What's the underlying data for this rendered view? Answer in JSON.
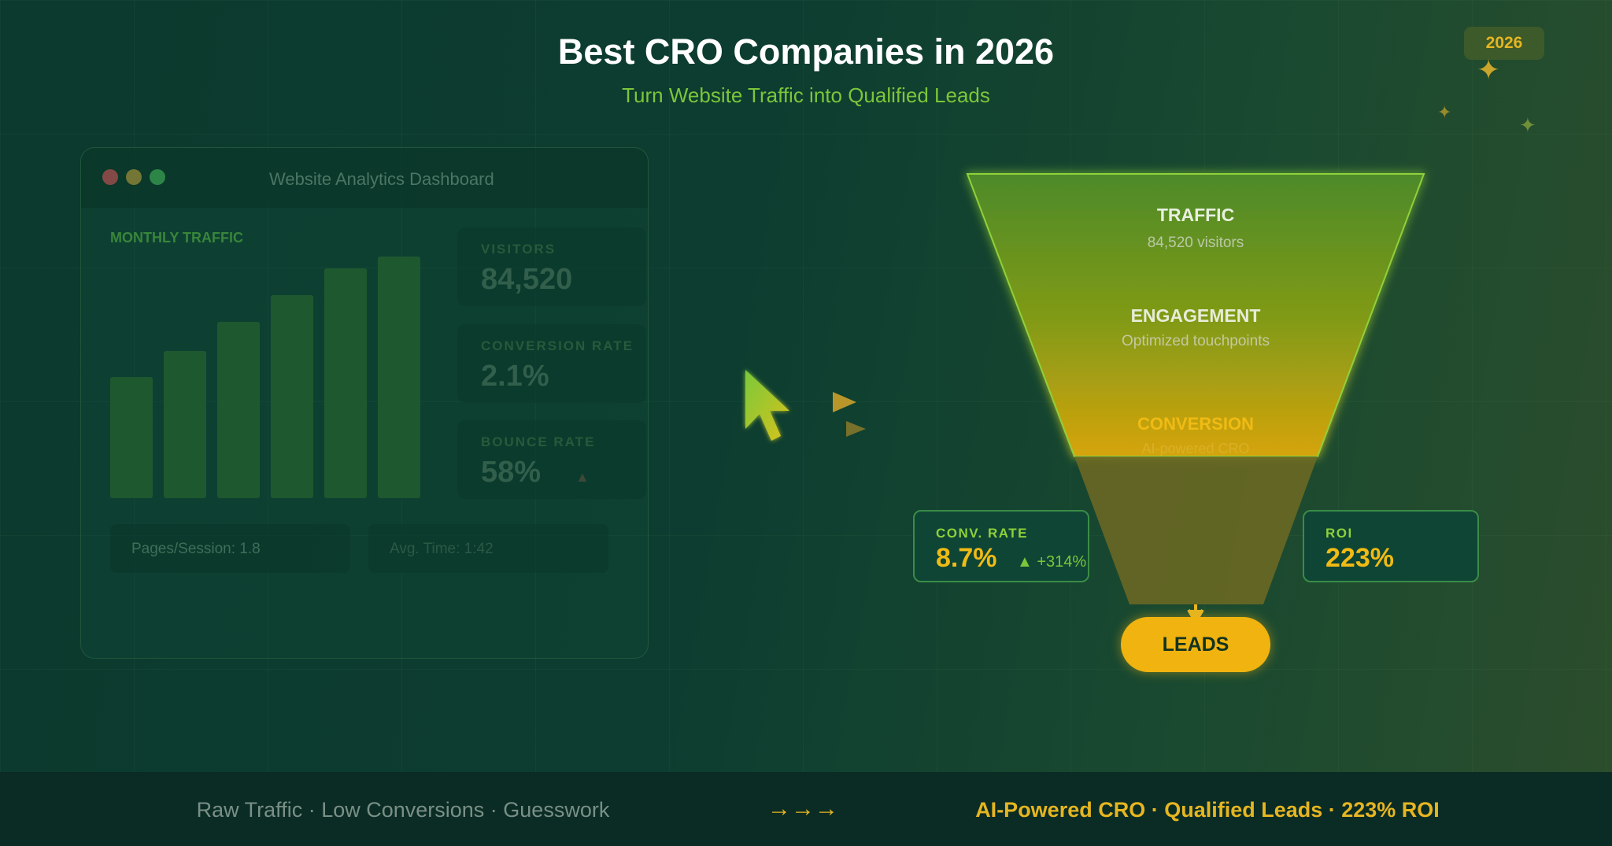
{
  "header": {
    "title": "Best CRO Companies in 2026",
    "subtitle": "Turn Website Traffic into Qualified Leads",
    "year_badge": "2026"
  },
  "dashboard": {
    "window_title": "Website Analytics Dashboard",
    "chart_label": "MONTHLY TRAFFIC",
    "bar_values": [
      0.5,
      0.61,
      0.73,
      0.84,
      0.95,
      1.0
    ],
    "stats": [
      {
        "label": "VISITORS",
        "value": "84,520"
      },
      {
        "label": "CONVERSION RATE",
        "value": "2.1%"
      },
      {
        "label": "BOUNCE RATE",
        "value": "58%"
      }
    ],
    "pages_per_session": "Pages/Session: 1.8",
    "avg_time": "Avg. Time: 1:42"
  },
  "funnel": {
    "traffic_label": "TRAFFIC",
    "traffic_sub": "84,520 visitors",
    "engagement_label": "ENGAGEMENT",
    "engagement_sub": "Optimized touchpoints",
    "conversion_label": "CONVERSION",
    "conversion_sub": "AI-powered CRO",
    "leads_label": "LEADS"
  },
  "metrics": {
    "conv_rate_label": "CONV. RATE",
    "conv_rate_value": "8.7%",
    "conv_rate_delta": "▲ +314%",
    "roi_label": "ROI",
    "roi_value": "223%"
  },
  "footer": {
    "left": "Raw Traffic · Low Conversions · Guesswork",
    "arrows": "→→→",
    "right": "AI-Powered CRO · Qualified Leads · 223% ROI"
  },
  "colors": {
    "accent_gold": "#e6b521",
    "accent_green": "#7cc63a"
  }
}
